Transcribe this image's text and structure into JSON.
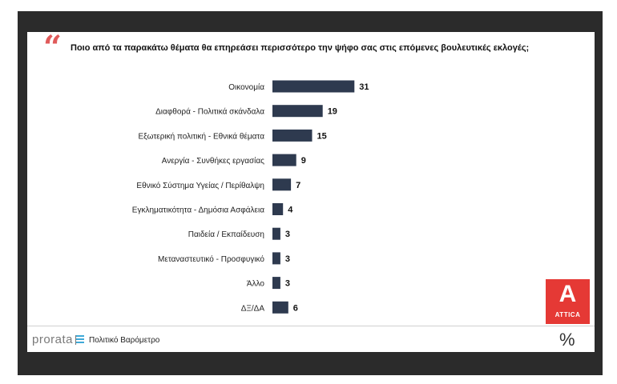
{
  "header": {
    "quote_mark": "“",
    "question": "Ποιο από τα παρακάτω θέματα θα επηρεάσει περισσότερο την ψήφο σας στις επόμενες βουλευτικές εκλογές;"
  },
  "chart_data": {
    "type": "bar",
    "orientation": "horizontal",
    "title": "Ποιο από τα παρακάτω θέματα θα επηρεάσει περισσότερο την ψήφο σας στις επόμενες βουλευτικές εκλογές;",
    "categories": [
      "Οικονομία",
      "Διαφθορά - Πολιτικά σκάνδαλα",
      "Εξωτερική πολιτική - Εθνικά θέματα",
      "Ανεργία - Συνθήκες εργασίας",
      "Εθνικό Σύστημα Υγείας / Περίθαλψη",
      "Εγκληματικότητα - Δημόσια Ασφάλεια",
      "Παιδεία / Εκπαίδευση",
      "Μεταναστευτικό - Προσφυγικό",
      "Άλλο",
      "ΔΞ/ΔΑ"
    ],
    "values": [
      31,
      19,
      15,
      9,
      7,
      4,
      3,
      3,
      3,
      6
    ],
    "bar_color": "#2e3a4f",
    "grid": false,
    "legend": "none"
  },
  "logo": {
    "letter": "Α",
    "text": "ATTICA",
    "color": "#e53935"
  },
  "footer": {
    "brand": "prorata",
    "subtitle": "Πολιτικό Βαρόμετρο",
    "percent_symbol": "%"
  }
}
